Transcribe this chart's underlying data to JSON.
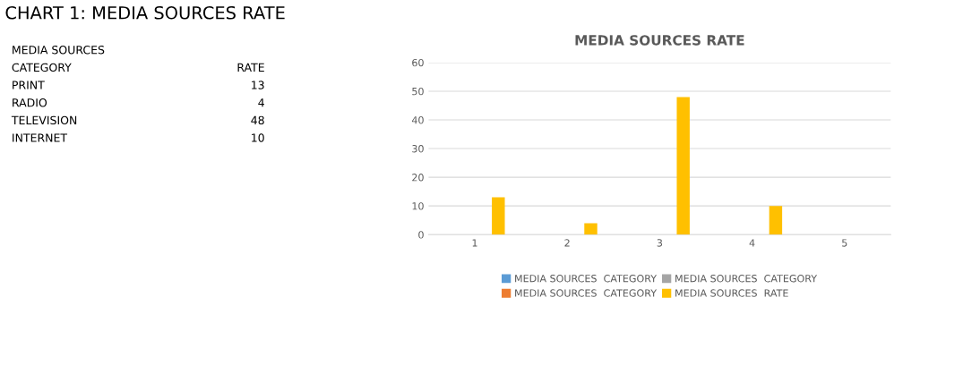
{
  "chart_data": {
    "type": "bar",
    "title": "MEDIA SOURCES RATE",
    "categories": [
      "1",
      "2",
      "3",
      "4",
      "5"
    ],
    "series": [
      {
        "name": "MEDIA SOURCES  CATEGORY",
        "color": "#5b9bd5",
        "values": [
          null,
          null,
          null,
          null,
          null
        ]
      },
      {
        "name": "MEDIA SOURCES  CATEGORY",
        "color": "#ed7d31",
        "values": [
          null,
          null,
          null,
          null,
          null
        ]
      },
      {
        "name": "MEDIA SOURCES  CATEGORY",
        "color": "#a5a5a5",
        "values": [
          null,
          null,
          null,
          null,
          null
        ]
      },
      {
        "name": "MEDIA SOURCES  RATE",
        "color": "#ffc000",
        "values": [
          13,
          4,
          48,
          10,
          null
        ]
      }
    ],
    "ylim": [
      0,
      60
    ],
    "yticks": [
      0,
      10,
      20,
      30,
      40,
      50,
      60
    ],
    "grid": "y",
    "legend": "bottom",
    "annotations": [
      "CHART 1: MEDIA SOURCES RATE",
      "MEDIA SOURCES",
      "CATEGORY",
      "RATE",
      "PRINT",
      "13",
      "RADIO",
      "4",
      "TELEVISION",
      "48",
      "INTERNET",
      "10"
    ]
  }
}
